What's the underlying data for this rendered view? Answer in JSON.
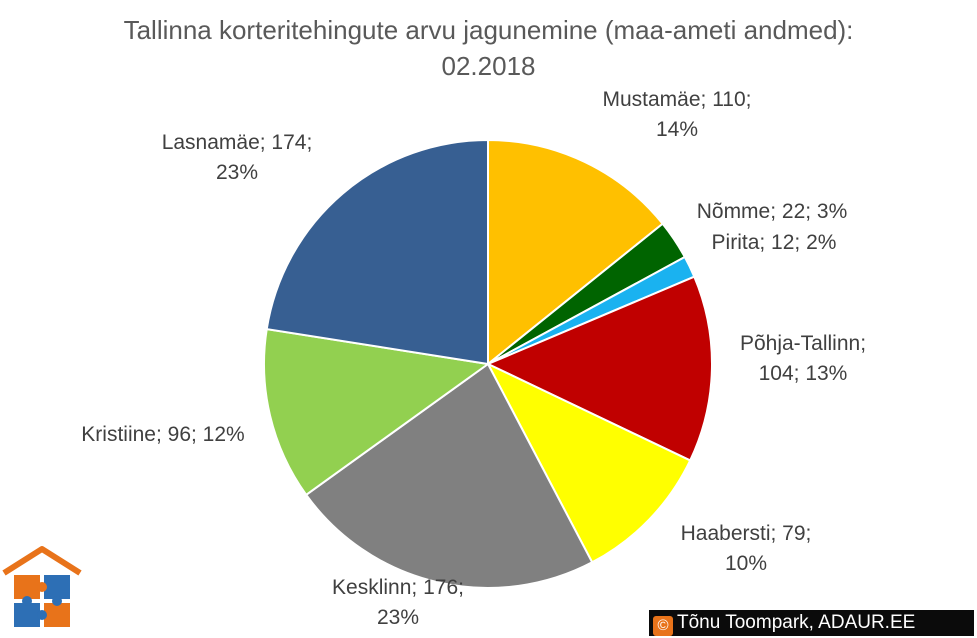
{
  "chart_data": {
    "type": "pie",
    "title": "Tallinna korteritehingute arvu jagunemine (maa-ameti andmed): 02.2018",
    "slices": [
      {
        "name": "Mustamäe",
        "value": 110,
        "percent": "14%",
        "label": [
          "Mustamäe; 110;",
          "14%"
        ],
        "color": "#ffc000"
      },
      {
        "name": "Nõmme",
        "value": 22,
        "percent": "3%",
        "label": [
          "Nõmme; 22; 3%"
        ],
        "color": "#006400"
      },
      {
        "name": "Pirita",
        "value": 12,
        "percent": "2%",
        "label": [
          "Pirita; 12; 2%"
        ],
        "color": "#1ab2f0"
      },
      {
        "name": "Põhja-Tallinn",
        "value": 104,
        "percent": "13%",
        "label": [
          "Põhja-Tallinn;",
          "104; 13%"
        ],
        "color": "#c00000"
      },
      {
        "name": "Haabersti",
        "value": 79,
        "percent": "10%",
        "label": [
          "Haabersti; 79;",
          "10%"
        ],
        "color": "#ffff00"
      },
      {
        "name": "Kesklinn",
        "value": 176,
        "percent": "23%",
        "label": [
          "Kesklinn; 176;",
          "23%"
        ],
        "color": "#808080"
      },
      {
        "name": "Kristiine",
        "value": 96,
        "percent": "12%",
        "label": [
          "Kristiine; 96; 12%"
        ],
        "color": "#92d050"
      },
      {
        "name": "Lasnamäe",
        "value": 174,
        "percent": "23%",
        "label": [
          "Lasnamäe; 174;",
          "23%"
        ],
        "color": "#375f92"
      }
    ],
    "legend": "none"
  },
  "credit": {
    "symbol": "©",
    "text": "Tõnu Toompark, ADAUR.EE"
  },
  "logo": {
    "icon": "house-puzzle-icon",
    "colors": [
      "#e8731a",
      "#2d6fb5"
    ]
  }
}
